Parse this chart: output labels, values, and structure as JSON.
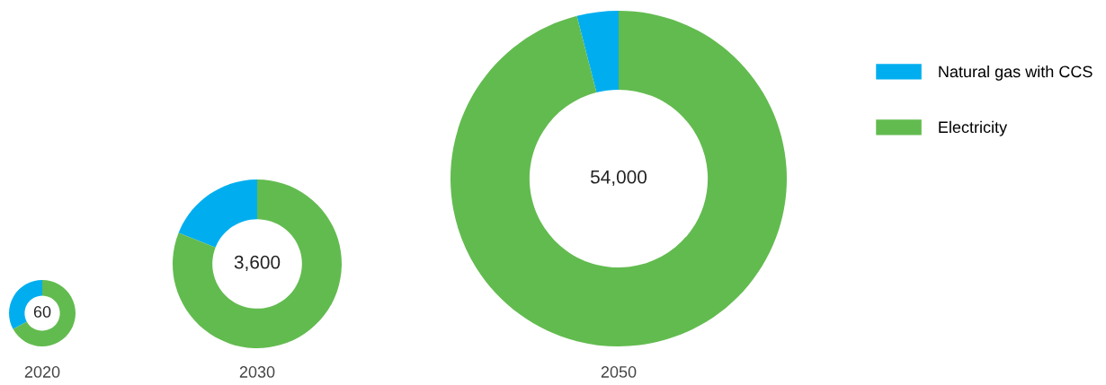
{
  "chart_data": [
    {
      "type": "donut",
      "xlabel": "2020",
      "annotations": [
        "60"
      ],
      "categories": [
        "Natural gas with CCS",
        "Electricity"
      ],
      "values": [
        33,
        67
      ],
      "colors": [
        "#00aeef",
        "#62bb4f"
      ],
      "legend": "right"
    },
    {
      "type": "donut",
      "xlabel": "2030",
      "annotations": [
        "3,600"
      ],
      "categories": [
        null,
        null
      ],
      "values": [
        19,
        81
      ],
      "colors": [
        "#00aeef",
        "#62bb4f"
      ]
    },
    {
      "type": "donut",
      "xlabel": "2050",
      "annotations": [
        "54,000"
      ],
      "categories": [
        null,
        null
      ],
      "values": [
        4,
        96
      ],
      "colors": [
        "#00aeef",
        "#62bb4f"
      ]
    }
  ]
}
